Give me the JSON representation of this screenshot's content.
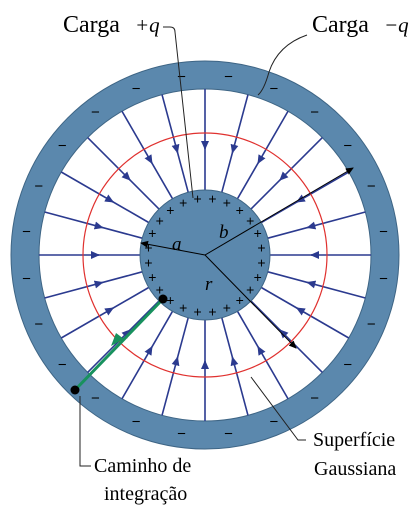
{
  "labels": {
    "charge_pos_word": "Carga",
    "charge_pos_symbol": "+q",
    "charge_neg_word": "Carga",
    "charge_neg_symbol": "−q",
    "radius_a": "a",
    "radius_b": "b",
    "radius_r": "r",
    "gaussian_line1": "Superfície",
    "gaussian_line2": "Gaussiana",
    "path_line1": "Caminho de",
    "path_line2": "integração",
    "plus_sign": "+",
    "minus_sign": "−"
  },
  "colors": {
    "conductor": "#5b88ad",
    "field_line": "#2b3a8f",
    "gaussian_surface": "#e0312f",
    "integration_path": "#18915e",
    "leader": "#222222"
  },
  "counts": {
    "field_lines": 24,
    "inner_plus_charges": 24,
    "outer_minus_charges": 24
  }
}
